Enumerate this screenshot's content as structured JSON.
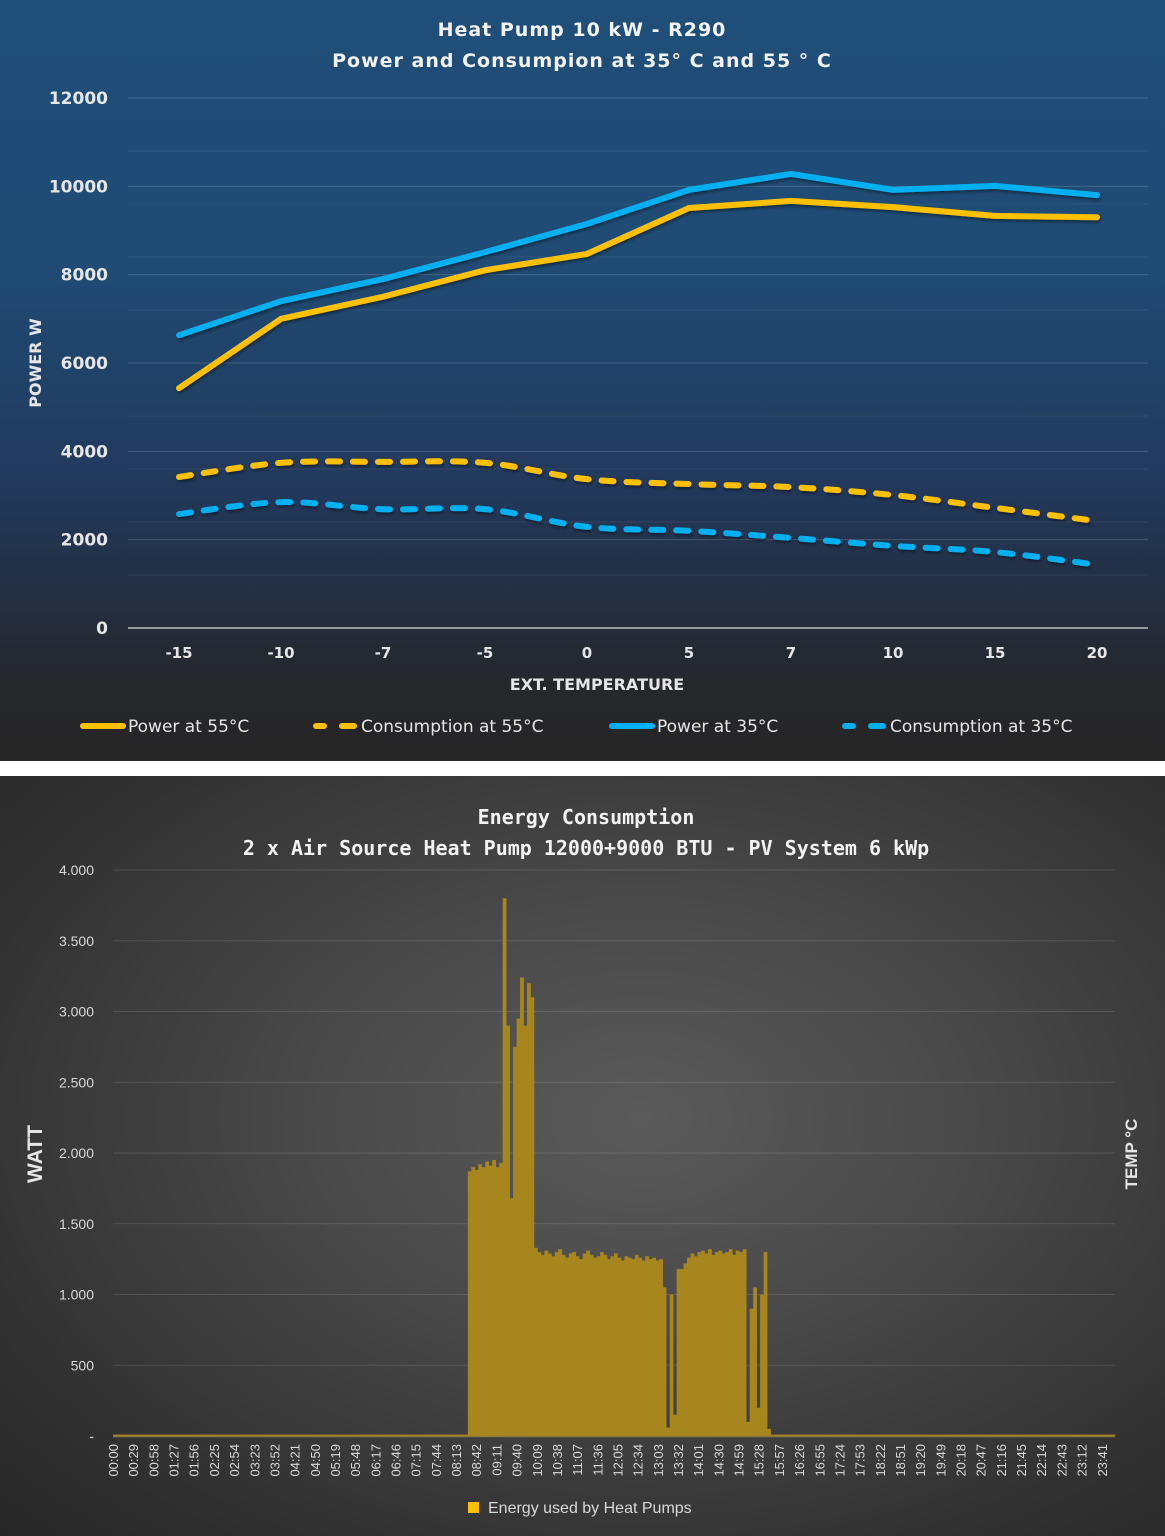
{
  "chart_data": [
    {
      "type": "line",
      "title": "Heat Pump 10 kW - R290",
      "subtitle": "Power and Consumpion at 35° C and 55 ° C",
      "xlabel": "EXT. TEMPERATURE",
      "ylabel": "POWER W",
      "categories": [
        "-15",
        "-10",
        "-7",
        "-5",
        "0",
        "5",
        "7",
        "10",
        "15",
        "20"
      ],
      "ylim": [
        0,
        12000
      ],
      "yticks": [
        "0",
        "2000",
        "4000",
        "6000",
        "8000",
        "10000",
        "12000"
      ],
      "ytick_values": [
        0,
        2000,
        4000,
        6000,
        8000,
        10000,
        12000
      ],
      "minor_grid_step": 1200,
      "grid": true,
      "legend_position": "bottom",
      "series": [
        {
          "name": "Power at 55°C",
          "color": "#ffc000",
          "style": "solid",
          "values": [
            5430,
            7000,
            7500,
            8100,
            8470,
            9510,
            9670,
            9530,
            9330,
            9300
          ]
        },
        {
          "name": "Consumption at 55°C",
          "color": "#ffc000",
          "style": "dashed",
          "values": [
            3420,
            3740,
            3760,
            3740,
            3370,
            3260,
            3190,
            3010,
            2720,
            2420
          ]
        },
        {
          "name": "Power at 35°C",
          "color": "#00b0f0",
          "style": "solid",
          "values": [
            6630,
            7400,
            7900,
            8510,
            9150,
            9920,
            10280,
            9920,
            10010,
            9800
          ]
        },
        {
          "name": "Consumption at 35°C",
          "color": "#00b0f0",
          "style": "dashed",
          "values": [
            2580,
            2850,
            2690,
            2690,
            2290,
            2200,
            2040,
            1860,
            1720,
            1430
          ]
        }
      ]
    },
    {
      "type": "bar",
      "title": "Energy Consumption",
      "subtitle": "2 x Air Source Heat Pump 12000+9000 BTU - PV System 6 kWp",
      "xlabel": "",
      "ylabel": "WATT",
      "ylabel_right": "TEMP °C",
      "ylim": [
        0,
        4000
      ],
      "yticks": [
        "-",
        "500",
        "1.000",
        "1.500",
        "2.000",
        "2.500",
        "3.000",
        "3.500",
        "4.000"
      ],
      "ytick_values": [
        0,
        500,
        1000,
        1500,
        2000,
        2500,
        3000,
        3500,
        4000
      ],
      "grid": true,
      "legend_position": "bottom",
      "x_tick_labels": [
        "00:00",
        "00:29",
        "00:58",
        "01:27",
        "01:56",
        "02:25",
        "02:54",
        "03:23",
        "03:52",
        "04:21",
        "04:50",
        "05:19",
        "05:48",
        "06:17",
        "06:46",
        "07:15",
        "07:44",
        "08:13",
        "08:42",
        "09:11",
        "09:40",
        "10:09",
        "10:38",
        "11:07",
        "11:36",
        "12:05",
        "12:34",
        "13:03",
        "13:32",
        "14:01",
        "14:30",
        "14:59",
        "15:28",
        "15:57",
        "16:26",
        "16:55",
        "17:24",
        "17:53",
        "18:22",
        "18:51",
        "19:20",
        "19:49",
        "20:18",
        "20:47",
        "21:16",
        "21:45",
        "22:14",
        "22:43",
        "23:12",
        "23:41"
      ],
      "x_tick_minutes_step": 29,
      "x_minutes_range": [
        0,
        1440
      ],
      "bin_minutes": 5,
      "series": [
        {
          "name": "Energy used by Heat Pumps",
          "color": "#ffc000",
          "bar_color": "#a8861e",
          "values": [
            10,
            10,
            10,
            10,
            10,
            10,
            10,
            10,
            10,
            10,
            10,
            10,
            10,
            10,
            10,
            10,
            10,
            10,
            10,
            10,
            10,
            10,
            10,
            10,
            10,
            10,
            10,
            10,
            10,
            10,
            10,
            10,
            10,
            10,
            10,
            10,
            10,
            10,
            10,
            10,
            10,
            10,
            10,
            10,
            10,
            10,
            10,
            10,
            10,
            10,
            10,
            10,
            10,
            10,
            10,
            10,
            10,
            10,
            10,
            10,
            10,
            10,
            10,
            10,
            10,
            10,
            10,
            10,
            10,
            10,
            10,
            10,
            10,
            10,
            10,
            10,
            10,
            10,
            10,
            10,
            10,
            10,
            10,
            10,
            10,
            10,
            10,
            10,
            10,
            10,
            10,
            10,
            10,
            10,
            10,
            10,
            10,
            10,
            10,
            10,
            10,
            10,
            1870,
            1900,
            1880,
            1920,
            1900,
            1940,
            1910,
            1950,
            1900,
            1930,
            3800,
            2900,
            1680,
            2750,
            2950,
            3240,
            2900,
            3200,
            3100,
            1330,
            1300,
            1280,
            1310,
            1290,
            1270,
            1300,
            1320,
            1280,
            1260,
            1290,
            1300,
            1270,
            1250,
            1290,
            1310,
            1280,
            1260,
            1270,
            1300,
            1280,
            1250,
            1270,
            1290,
            1260,
            1240,
            1270,
            1260,
            1250,
            1280,
            1260,
            1240,
            1270,
            1250,
            1260,
            1240,
            1250,
            1050,
            60,
            1000,
            150,
            1180,
            1180,
            1220,
            1260,
            1290,
            1270,
            1300,
            1310,
            1290,
            1320,
            1280,
            1300,
            1310,
            1290,
            1300,
            1320,
            1280,
            1310,
            1300,
            1320,
            100,
            900,
            1050,
            200,
            1000,
            1300,
            50,
            10,
            10,
            10,
            10,
            10,
            10,
            10,
            10,
            10,
            10,
            10,
            10,
            10,
            10,
            10,
            10,
            10,
            10,
            10,
            10,
            10,
            10,
            10,
            10,
            10,
            10,
            10,
            10,
            10,
            10,
            10,
            10,
            10,
            10,
            10,
            10,
            10,
            10,
            10,
            10,
            10,
            10,
            10,
            10,
            10,
            10,
            10,
            10,
            10,
            10,
            10,
            10,
            10,
            10,
            10,
            10,
            10,
            10,
            10,
            10,
            10,
            10,
            10,
            10,
            10,
            10,
            10,
            10,
            10,
            10,
            10,
            10,
            10,
            10,
            10,
            10,
            10,
            10,
            10,
            10,
            10,
            10,
            10,
            10,
            10,
            10,
            10,
            10,
            10,
            10,
            10,
            10,
            10,
            10,
            10,
            10,
            10,
            10,
            10
          ]
        }
      ]
    }
  ]
}
